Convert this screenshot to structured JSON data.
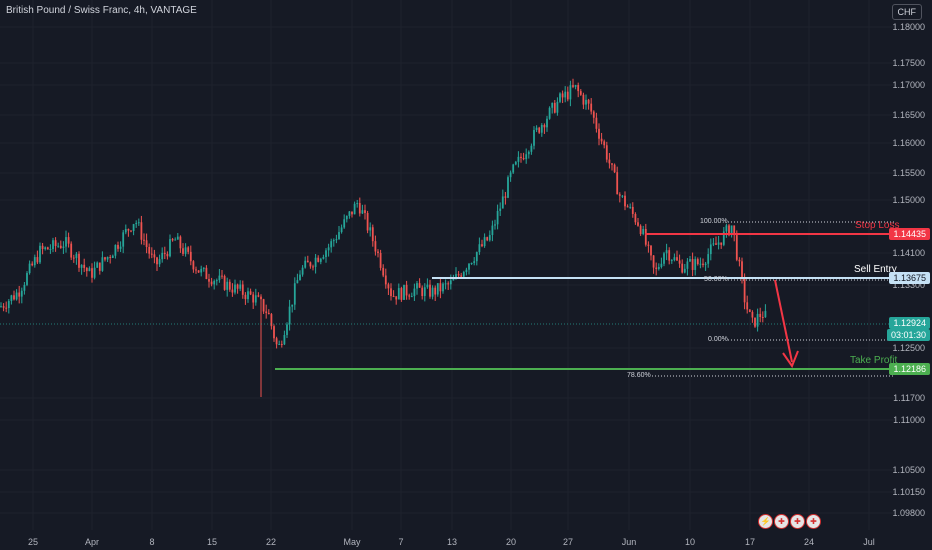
{
  "header": {
    "title": "British Pound / Swiss Franc, 4h, VANTAGE",
    "currency_button": "CHF"
  },
  "colors": {
    "background": "#161a25",
    "up": "#26a69a",
    "down": "#ef5350",
    "stop_loss": "#f23645",
    "entry": "#c5e1f5",
    "take_profit": "#4caf50"
  },
  "price_axis": {
    "ticks": [
      "1.18000",
      "1.17500",
      "1.17000",
      "1.16500",
      "1.16000",
      "1.15500",
      "1.15000",
      "1.14100",
      "1.13300",
      "1.12500",
      "1.11700",
      "1.11000",
      "1.10500",
      "1.10150",
      "1.09800"
    ]
  },
  "time_axis": {
    "ticks": [
      "25",
      "Apr",
      "8",
      "15",
      "22",
      "May",
      "7",
      "13",
      "20",
      "27",
      "Jun",
      "10",
      "17",
      "24",
      "Jul"
    ]
  },
  "levels": {
    "stop_loss": {
      "label": "Stop Loss",
      "price": "1.14435"
    },
    "sell_entry": {
      "label": "Sell Entry",
      "price": "1.13675"
    },
    "current": {
      "price": "1.12924",
      "countdown": "03:01:30"
    },
    "take_profit": {
      "label": "Take Profit",
      "price": "1.12186"
    }
  },
  "fib": {
    "l100": "100.00%",
    "l50": "50.00%",
    "l0": "0.00%",
    "l786": "78.60%"
  },
  "events": {
    "icons": [
      "lightning-icon",
      "uk-flag-icon",
      "uk-flag-icon",
      "uk-flag-icon"
    ]
  },
  "chart_data": {
    "type": "candlestick",
    "title": "British Pound / Swiss Franc, 4h, VANTAGE",
    "ylim": [
      1.095,
      1.182
    ],
    "path_points": [
      [
        0,
        1.1315
      ],
      [
        18,
        1.134
      ],
      [
        40,
        1.141
      ],
      [
        65,
        1.1425
      ],
      [
        90,
        1.137
      ],
      [
        110,
        1.1405
      ],
      [
        135,
        1.1465
      ],
      [
        155,
        1.1385
      ],
      [
        175,
        1.143
      ],
      [
        200,
        1.1375
      ],
      [
        230,
        1.135
      ],
      [
        255,
        1.133
      ],
      [
        268,
        1.1305
      ],
      [
        278,
        1.124
      ],
      [
        300,
        1.1375
      ],
      [
        330,
        1.142
      ],
      [
        358,
        1.1495
      ],
      [
        375,
        1.142
      ],
      [
        392,
        1.1335
      ],
      [
        415,
        1.1345
      ],
      [
        432,
        1.134
      ],
      [
        452,
        1.1355
      ],
      [
        470,
        1.1395
      ],
      [
        490,
        1.1435
      ],
      [
        512,
        1.1545
      ],
      [
        540,
        1.1625
      ],
      [
        560,
        1.167
      ],
      [
        575,
        1.169
      ],
      [
        590,
        1.1655
      ],
      [
        605,
        1.1585
      ],
      [
        620,
        1.1505
      ],
      [
        640,
        1.1455
      ],
      [
        655,
        1.137
      ],
      [
        665,
        1.1415
      ],
      [
        680,
        1.1385
      ],
      [
        700,
        1.139
      ],
      [
        718,
        1.1425
      ],
      [
        732,
        1.1455
      ],
      [
        738,
        1.1395
      ],
      [
        745,
        1.1325
      ],
      [
        752,
        1.1285
      ],
      [
        762,
        1.1305
      ],
      [
        768,
        1.1292
      ]
    ]
  }
}
